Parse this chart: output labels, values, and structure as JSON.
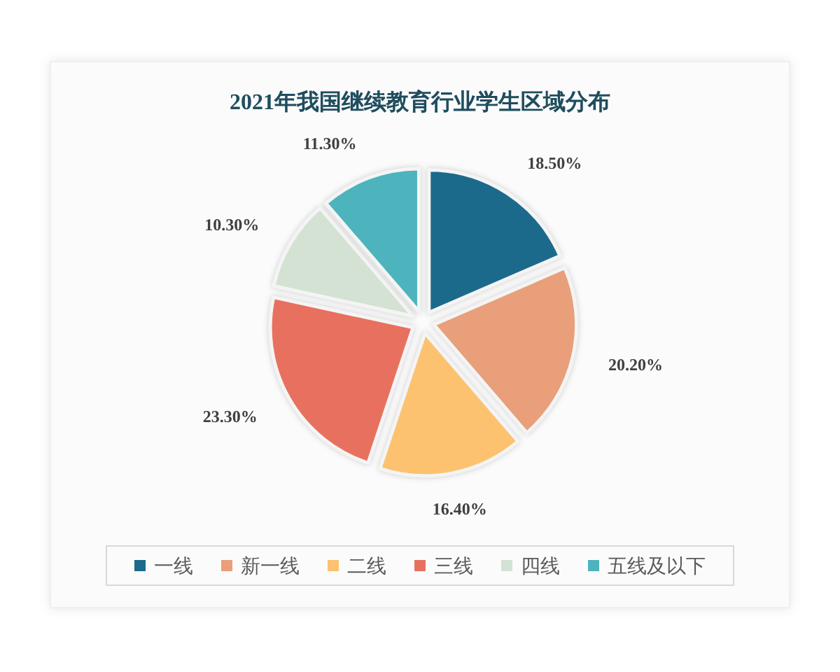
{
  "chart_data": {
    "type": "pie",
    "title": "2021年我国继续教育行业学生区域分布",
    "categories": [
      "一线",
      "新一线",
      "二线",
      "三线",
      "四线",
      "五线及以下"
    ],
    "values": [
      18.5,
      20.2,
      16.4,
      23.3,
      10.3,
      11.3
    ],
    "value_labels": [
      "18.50%",
      "20.20%",
      "16.40%",
      "23.30%",
      "10.30%",
      "11.30%"
    ],
    "colors": [
      "#1b6a8c",
      "#e89f7a",
      "#fcc26f",
      "#e8705e",
      "#d3e2d2",
      "#4db3bd"
    ],
    "legend": "bottom"
  }
}
